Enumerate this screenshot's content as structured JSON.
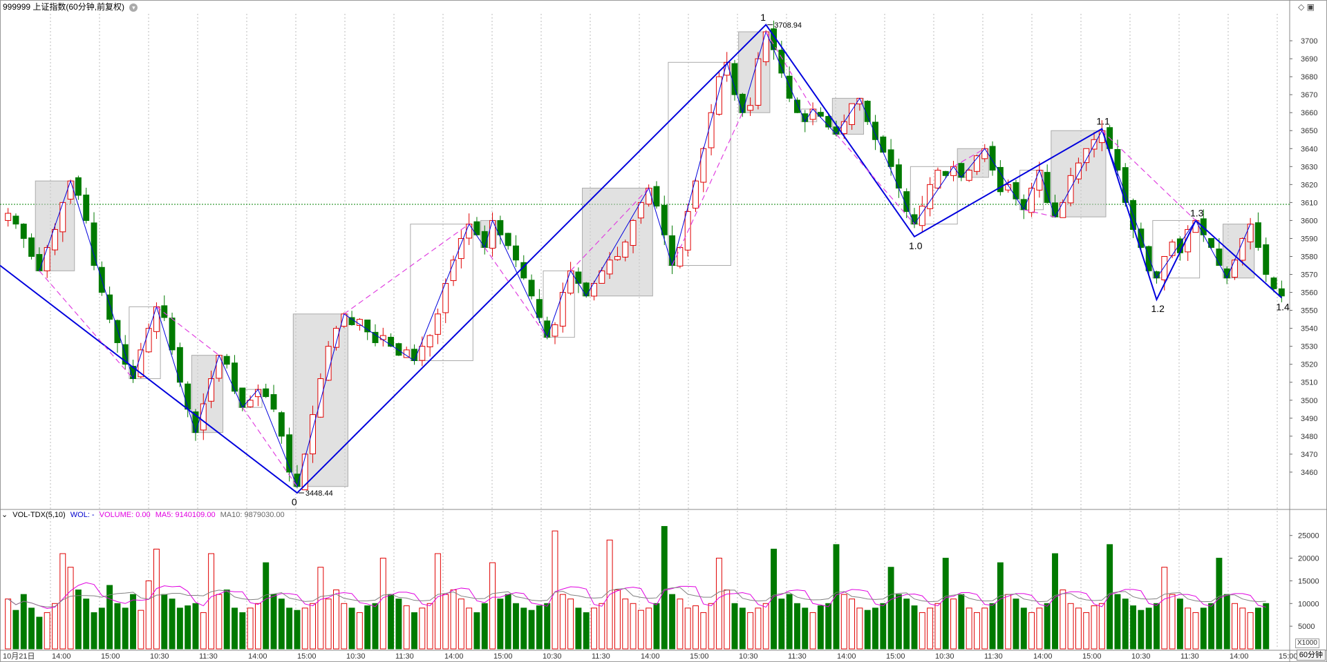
{
  "header": {
    "title": "999999 上证指数(60分钟,前复权)",
    "dropdown_icon": "chevron-down-icon"
  },
  "toolbar_icons": [
    "diamond-icon",
    "window-restore-icon"
  ],
  "volume_header": {
    "indicator": "VOL-TDX(5,10)",
    "wol": "WOL: -",
    "volume": "VOLUME: 0.00",
    "ma5": "MA5: 9140109.00",
    "ma10": "MA10: 9879030.00"
  },
  "period_badge": "60分钟",
  "x1000_label": "X1000",
  "colors": {
    "up": "#e00000",
    "down": "#007a00",
    "wave": "#0000dd",
    "dashed": "#e040e0",
    "box": "#d0d0d0",
    "ref_line": "#008000",
    "ma5": "#e000e0",
    "ma10": "#808080"
  },
  "chart_data": [
    {
      "type": "candlestick",
      "title": "999999 上证指数(60分钟,前复权)",
      "ylim": [
        3440,
        3715
      ],
      "y_ticks": [
        3460,
        3470,
        3480,
        3490,
        3500,
        3510,
        3520,
        3530,
        3540,
        3550,
        3560,
        3570,
        3580,
        3590,
        3600,
        3610,
        3620,
        3630,
        3640,
        3650,
        3660,
        3670,
        3680,
        3690,
        3700
      ],
      "reference_line": 3609,
      "x_ticks": [
        "10月21日",
        "14:00",
        "15:00",
        "10:30",
        "11:30",
        "14:00",
        "15:00",
        "10:30",
        "11:30",
        "14:00",
        "15:00",
        "10:30",
        "11:30",
        "14:00",
        "15:00",
        "10:30",
        "11:30",
        "14:00",
        "15:00",
        "10:30",
        "11:30",
        "14:00",
        "15:00",
        "10:30",
        "11:30",
        "14:00",
        "15:00"
      ],
      "close_series": [
        3604,
        3598,
        3590,
        3580,
        3572,
        3585,
        3595,
        3610,
        3622,
        3614,
        3600,
        3575,
        3560,
        3545,
        3532,
        3520,
        3512,
        3528,
        3540,
        3552,
        3546,
        3528,
        3510,
        3495,
        3482,
        3498,
        3512,
        3525,
        3520,
        3505,
        3496,
        3500,
        3506,
        3502,
        3495,
        3480,
        3460,
        3452,
        3470,
        3492,
        3512,
        3530,
        3540,
        3548,
        3542,
        3545,
        3538,
        3532,
        3536,
        3530,
        3525,
        3528,
        3522,
        3530,
        3536,
        3548,
        3565,
        3578,
        3590,
        3598,
        3592,
        3585,
        3600,
        3592,
        3586,
        3578,
        3568,
        3558,
        3546,
        3535,
        3542,
        3560,
        3572,
        3565,
        3558,
        3565,
        3572,
        3578,
        3580,
        3588,
        3600,
        3610,
        3618,
        3608,
        3592,
        3575,
        3585,
        3605,
        3622,
        3640,
        3660,
        3680,
        3688,
        3670,
        3660,
        3664,
        3690,
        3705,
        3695,
        3682,
        3668,
        3660,
        3655,
        3662,
        3658,
        3652,
        3648,
        3655,
        3665,
        3668,
        3655,
        3645,
        3638,
        3630,
        3618,
        3605,
        3598,
        3608,
        3620,
        3628,
        3625,
        3630,
        3624,
        3628,
        3636,
        3640,
        3628,
        3616,
        3620,
        3612,
        3606,
        3618,
        3628,
        3610,
        3602,
        3610,
        3625,
        3632,
        3640,
        3645,
        3650,
        3640,
        3628,
        3610,
        3595,
        3585,
        3572,
        3568,
        3580,
        3588,
        3582,
        3595,
        3600,
        3592,
        3585,
        3575,
        3568,
        3578,
        3590,
        3598,
        3585,
        3570,
        3562,
        3558
      ],
      "annotations": [
        {
          "label": "1",
          "value": 3708.94,
          "price_text": "3708.94"
        },
        {
          "label": "0",
          "value": 3448.44,
          "price_text": "3448.44"
        },
        {
          "label": "1.0",
          "value": 3591
        },
        {
          "label": "1.1",
          "value": 3651
        },
        {
          "label": "1.2",
          "value": 3556
        },
        {
          "label": "1.3",
          "value": 3600
        },
        {
          "label": "1.4",
          "value": 3557
        }
      ]
    },
    {
      "type": "bar",
      "title": "VOL-TDX(5,10)",
      "ylim": [
        0,
        28000
      ],
      "y_ticks": [
        5000,
        10000,
        15000,
        20000,
        25000
      ],
      "unit": "X1000",
      "volume_series": [
        11000,
        8500,
        12000,
        9000,
        7000,
        8000,
        10000,
        21000,
        18000,
        13000,
        11000,
        8000,
        9000,
        14000,
        10000,
        9000,
        12000,
        8500,
        15000,
        22000,
        12000,
        11000,
        9000,
        9500,
        10000,
        8000,
        21000,
        12000,
        13000,
        9000,
        8000,
        9000,
        10000,
        19000,
        12000,
        11000,
        9000,
        8500,
        9000,
        10000,
        18000,
        11000,
        13000,
        10000,
        9000,
        8000,
        9500,
        10000,
        20000,
        12000,
        11000,
        9500,
        8000,
        9000,
        10000,
        21000,
        12000,
        13000,
        11000,
        9000,
        8000,
        10000,
        19000,
        11000,
        12000,
        10000,
        9000,
        8500,
        9500,
        10000,
        26000,
        12000,
        11000,
        9000,
        8000,
        9000,
        10000,
        24000,
        13000,
        11000,
        10000,
        8500,
        9000,
        10000,
        27000,
        12000,
        11000,
        9000,
        9500,
        8000,
        10000,
        20000,
        13000,
        10000,
        9000,
        8000,
        9000,
        10000,
        22000,
        11000,
        12000,
        10000,
        9000,
        8000,
        9500,
        10000,
        23000,
        12000,
        11000,
        9000,
        8500,
        9000,
        10000,
        18000,
        12000,
        11000,
        9500,
        8000,
        9000,
        10000,
        20000,
        11000,
        12000,
        9000,
        8000,
        9000,
        10000,
        19000,
        12000,
        11000,
        9000,
        8000,
        9000,
        10000,
        21000,
        13000,
        10000,
        9000,
        8000,
        9500,
        10000,
        23000,
        12000,
        11000,
        9500,
        8500,
        9000,
        10000,
        18000,
        12000,
        11000,
        9000,
        8000,
        9000,
        10000,
        20000,
        12000,
        10000,
        9000,
        8000,
        9000,
        10000
      ],
      "ma5": 9140109.0,
      "ma10": 9879030.0
    }
  ]
}
